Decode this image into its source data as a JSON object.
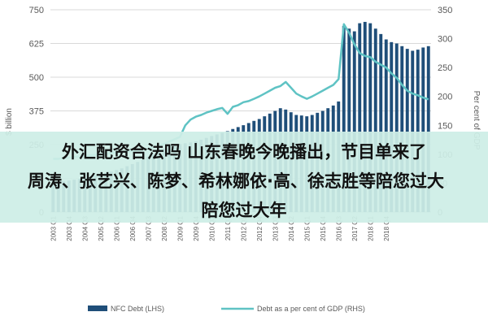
{
  "chart_data": {
    "type": "bar+line",
    "left_axis": {
      "label": "$ billion",
      "ticks": [
        "0",
        "125",
        "250",
        "375",
        "500",
        "625",
        "750"
      ],
      "ylim": [
        0,
        750
      ]
    },
    "right_axis": {
      "label": "Per cent of GDP",
      "ticks": [
        "0",
        "50",
        "100",
        "150",
        "200",
        "250",
        "300",
        "350"
      ],
      "ylim": [
        0,
        350
      ]
    },
    "x_tick_labels": [
      "2003 Q1",
      "2003 Q4",
      "2004 Q3",
      "2005 Q2",
      "2006 Q1",
      "2006 Q4",
      "2007 Q3",
      "2008 Q2",
      "2009 Q1",
      "2009 Q4",
      "2010 Q3",
      "2011 Q2",
      "2012 Q1",
      "2012 Q4",
      "2013 Q3",
      "2014 Q2",
      "2015 Q1",
      "2015 Q4",
      "2016 Q3",
      "2017 Q2",
      "2018 Q1",
      "2018 Q4"
    ],
    "x_tick_every": 3,
    "series": [
      {
        "name": "NFC Debt (LHS)",
        "type": "bar",
        "axis": "left",
        "color": "#1f4e79",
        "values": [
          110,
          112,
          114,
          117,
          120,
          123,
          127,
          131,
          135,
          140,
          145,
          150,
          156,
          162,
          170,
          178,
          186,
          195,
          205,
          215,
          225,
          235,
          245,
          250,
          252,
          255,
          258,
          262,
          268,
          275,
          282,
          288,
          294,
          300,
          308,
          315,
          322,
          330,
          338,
          345,
          355,
          365,
          375,
          385,
          380,
          370,
          360,
          358,
          355,
          360,
          368,
          375,
          385,
          395,
          410,
          690,
          680,
          670,
          700,
          705,
          700,
          680,
          660,
          640,
          630,
          625,
          615,
          605,
          598,
          602,
          610,
          615
        ]
      },
      {
        "name": "Debt as a per cent of GDP (RHS)",
        "type": "line",
        "axis": "right",
        "color": "#5fc3c4",
        "values": [
          92,
          92,
          93,
          94,
          95,
          96,
          97,
          98,
          99,
          100,
          101,
          102,
          103,
          104,
          105,
          106,
          107,
          108,
          110,
          112,
          115,
          118,
          122,
          126,
          130,
          150,
          160,
          165,
          168,
          172,
          175,
          178,
          180,
          170,
          182,
          185,
          190,
          192,
          196,
          200,
          205,
          210,
          215,
          218,
          225,
          215,
          205,
          200,
          196,
          200,
          205,
          210,
          215,
          220,
          230,
          325,
          310,
          290,
          275,
          270,
          268,
          260,
          255,
          250,
          240,
          232,
          220,
          210,
          205,
          202,
          198,
          195
        ]
      }
    ]
  },
  "overlay": {
    "line1": "外汇配资合法吗 山东春晚今晚播出，节目单来了",
    "line2": "周涛、张艺兴、陈梦、希林娜依·高、徐志胜等陪您过大",
    "line3": "陪您过大年"
  }
}
